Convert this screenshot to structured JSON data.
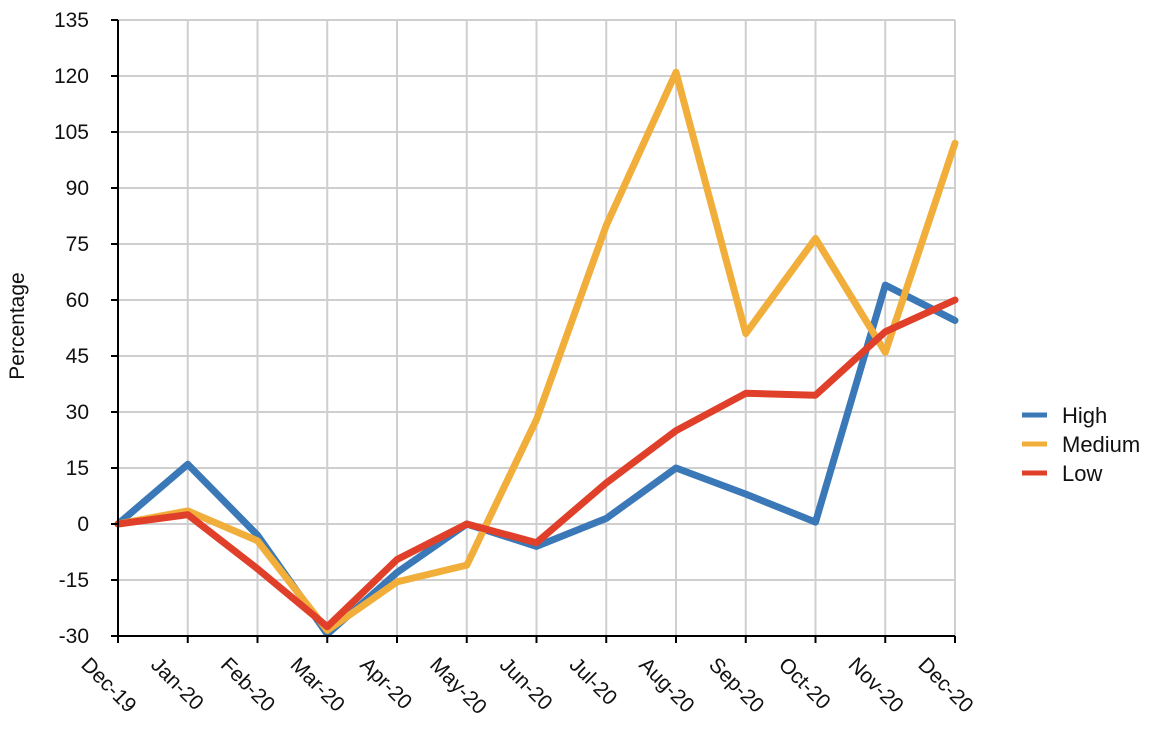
{
  "chart_data": {
    "type": "line",
    "ylabel": "Percentage",
    "xlabel": "",
    "ylim": [
      -30,
      135
    ],
    "yticks": [
      -30,
      -15,
      0,
      15,
      30,
      45,
      60,
      75,
      90,
      105,
      120,
      135
    ],
    "grid": true,
    "legend_position": "right",
    "categories": [
      "Dec-19",
      "Jan-20",
      "Feb-20",
      "Mar-20",
      "Apr-20",
      "May-20",
      "Jun-20",
      "Jul-20",
      "Aug-20",
      "Sep-20",
      "Oct-20",
      "Nov-20",
      "Dec-20"
    ],
    "series": [
      {
        "name": "High",
        "color": "#3a78b7",
        "values": [
          0,
          16,
          -3,
          -29.5,
          -13,
          0,
          -6,
          1.5,
          15,
          8,
          0.5,
          64,
          54.5
        ]
      },
      {
        "name": "Medium",
        "color": "#f1ae3a",
        "values": [
          0,
          3.5,
          -4.5,
          -28.5,
          -15.5,
          -11,
          28,
          80,
          121,
          51,
          76.5,
          46,
          102
        ]
      },
      {
        "name": "Low",
        "color": "#e0402a",
        "values": [
          0,
          2.5,
          -12,
          -27.5,
          -9.5,
          0,
          -5,
          11,
          25,
          35,
          34.5,
          51.5,
          60
        ]
      }
    ]
  }
}
